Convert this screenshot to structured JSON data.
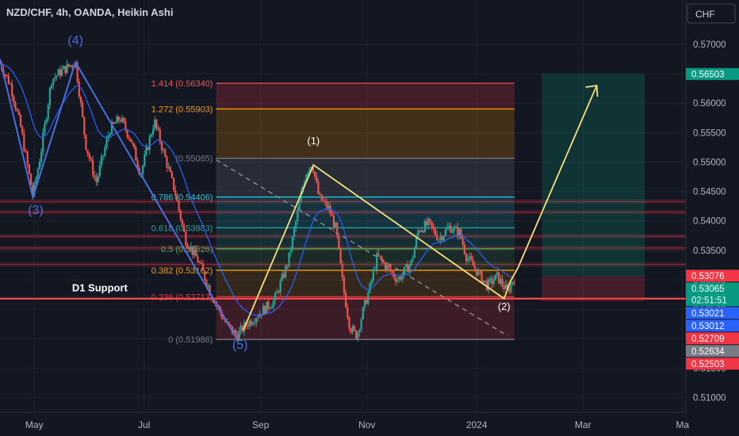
{
  "header": {
    "title": "NZD/CHF, 4h, OANDA, Heikin Ashi",
    "currency": "CHF"
  },
  "colors": {
    "bg": "#131722",
    "grid": "#1e222d",
    "axis_text": "#b2b5be",
    "bull": "#26a69a",
    "bear": "#ef5350",
    "ema": "#2962ff",
    "wave": "#4a6fe0",
    "yellow": "#f5e27a",
    "support": "#ff4d4d"
  },
  "chart_data": {
    "type": "candlestick",
    "title": "NZD/CHF, 4h, OANDA, Heikin Ashi",
    "ylim": [
      0.5075,
      0.5735
    ],
    "y_ticks": [
      0.51,
      0.515,
      0.52,
      0.525,
      0.53,
      0.535,
      0.54,
      0.545,
      0.55,
      0.555,
      0.56,
      0.565,
      0.57
    ],
    "y_tick_labels": [
      "0.51000",
      "0.51500",
      "0.52000",
      "0.52500",
      "0.53000",
      "0.53500",
      "0.54000",
      "0.54500",
      "0.55000",
      "0.55500",
      "0.56000",
      "0.56500",
      "0.57000"
    ],
    "x_ticks": [
      {
        "label": "May",
        "t": 0.05
      },
      {
        "label": "Jul",
        "t": 0.21
      },
      {
        "label": "Sep",
        "t": 0.38
      },
      {
        "label": "Nov",
        "t": 0.535
      },
      {
        "label": "2024",
        "t": 0.695
      },
      {
        "label": "Mar",
        "t": 0.85
      },
      {
        "label": "Ma",
        "t": 0.995
      }
    ],
    "price_path": [
      [
        0.0,
        0.5668
      ],
      [
        0.015,
        0.5632
      ],
      [
        0.03,
        0.556
      ],
      [
        0.048,
        0.5443
      ],
      [
        0.06,
        0.552
      ],
      [
        0.075,
        0.564
      ],
      [
        0.09,
        0.5655
      ],
      [
        0.11,
        0.567
      ],
      [
        0.125,
        0.553
      ],
      [
        0.14,
        0.5465
      ],
      [
        0.16,
        0.5555
      ],
      [
        0.175,
        0.5575
      ],
      [
        0.19,
        0.554
      ],
      [
        0.205,
        0.548
      ],
      [
        0.225,
        0.557
      ],
      [
        0.24,
        0.551
      ],
      [
        0.255,
        0.545
      ],
      [
        0.27,
        0.537
      ],
      [
        0.29,
        0.533
      ],
      [
        0.31,
        0.527
      ],
      [
        0.33,
        0.5225
      ],
      [
        0.345,
        0.5205
      ],
      [
        0.36,
        0.5225
      ],
      [
        0.38,
        0.5245
      ],
      [
        0.4,
        0.5265
      ],
      [
        0.42,
        0.533
      ],
      [
        0.435,
        0.542
      ],
      [
        0.445,
        0.548
      ],
      [
        0.455,
        0.55
      ],
      [
        0.465,
        0.544
      ],
      [
        0.48,
        0.542
      ],
      [
        0.49,
        0.5385
      ],
      [
        0.5,
        0.529
      ],
      [
        0.51,
        0.522
      ],
      [
        0.52,
        0.5205
      ],
      [
        0.53,
        0.525
      ],
      [
        0.54,
        0.529
      ],
      [
        0.55,
        0.534
      ],
      [
        0.565,
        0.532
      ],
      [
        0.58,
        0.53
      ],
      [
        0.6,
        0.533
      ],
      [
        0.61,
        0.5385
      ],
      [
        0.625,
        0.5395
      ],
      [
        0.64,
        0.537
      ],
      [
        0.655,
        0.539
      ],
      [
        0.67,
        0.538
      ],
      [
        0.68,
        0.534
      ],
      [
        0.695,
        0.5315
      ],
      [
        0.71,
        0.529
      ],
      [
        0.725,
        0.5305
      ],
      [
        0.74,
        0.528
      ],
      [
        0.75,
        0.5305
      ]
    ],
    "wave_labels": [
      {
        "label": "(4)",
        "t": 0.11,
        "y": 0.57,
        "color": "#4a6fe0"
      },
      {
        "label": "(3)",
        "t": 0.052,
        "y": 0.5412,
        "color": "#4a6fe0"
      },
      {
        "label": "(5)",
        "t": 0.35,
        "y": 0.5183,
        "color": "#4a6fe0"
      },
      {
        "label": "(1)",
        "t": 0.457,
        "y": 0.553,
        "color": "#ffffff"
      },
      {
        "label": "(2)",
        "t": 0.735,
        "y": 0.5249,
        "color": "#ffffff"
      }
    ],
    "fib_levels": [
      {
        "label": "1.414 (0.56340)",
        "value": 0.5634,
        "color": "#ef5350"
      },
      {
        "label": "1.272 (0.55903)",
        "value": 0.55903,
        "color": "#ff9800"
      },
      {
        "label": "(0.55065)",
        "value": 0.55065,
        "color": "#787b86"
      },
      {
        "label": "0.786 (0.54406)",
        "value": 0.54406,
        "color": "#26c6da"
      },
      {
        "label": "0.618 (0.53883)",
        "value": 0.53883,
        "color": "#26a69a"
      },
      {
        "label": "0.5 (0.53526)",
        "value": 0.53526,
        "color": "#4caf50"
      },
      {
        "label": "0.382 (0.53162)",
        "value": 0.53162,
        "color": "#ff9800"
      },
      {
        "label": "0.236 (0.52713)",
        "value": 0.52713,
        "color": "#f23645"
      },
      {
        "label": "0 (0.51986)",
        "value": 0.51986,
        "color": "#787b86"
      }
    ],
    "support_label": "D1 Support",
    "support_value": 0.5268,
    "resistance_zones": [
      0.5433,
      0.5415,
      0.5374,
      0.5354,
      0.5326
    ],
    "price_tags": [
      {
        "text": "0.56503",
        "value": 0.56503,
        "bg": "#089981",
        "fg": "#ffffff"
      },
      {
        "text": "0.53076",
        "value": 0.53076,
        "bg": "#f23645",
        "fg": "#ffffff"
      },
      {
        "text": "0.53065",
        "value": 0.53065,
        "bg": "#089981",
        "fg": "#ffffff",
        "sub": "02:51:51"
      },
      {
        "text": "0.53021",
        "value": 0.53021,
        "bg": "#2962ff",
        "fg": "#ffffff"
      },
      {
        "text": "0.53012",
        "value": 0.53012,
        "bg": "#2962ff",
        "fg": "#ffffff"
      },
      {
        "text": "0.52709",
        "value": 0.52709,
        "bg": "#f23645",
        "fg": "#ffffff"
      },
      {
        "text": "0.52634",
        "value": 0.52634,
        "bg": "#787b86",
        "fg": "#ffffff"
      },
      {
        "text": "0.52503",
        "value": 0.52503,
        "bg": "#f23645",
        "fg": "#ffffff"
      }
    ],
    "position": {
      "t0": 0.79,
      "t1": 0.94,
      "entry": 0.53065,
      "target": 0.56503,
      "stop": 0.52634
    },
    "projection": [
      [
        0.744,
        0.5297
      ],
      [
        0.755,
        0.532
      ],
      [
        0.87,
        0.563
      ]
    ]
  }
}
